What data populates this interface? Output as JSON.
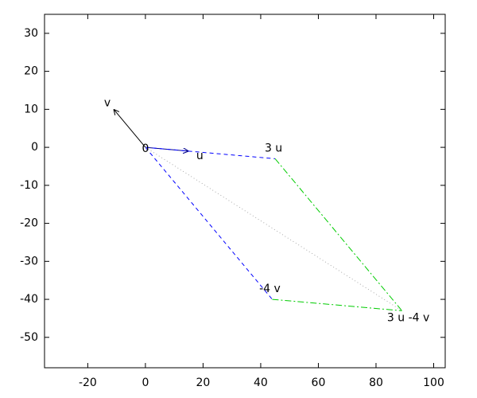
{
  "chart_data": {
    "type": "vector",
    "xlim": [
      -35,
      104
    ],
    "ylim": [
      -58,
      35
    ],
    "xticks": [
      -20,
      0,
      20,
      40,
      60,
      80,
      100
    ],
    "yticks": [
      -50,
      -40,
      -30,
      -20,
      -10,
      0,
      10,
      20,
      30
    ],
    "series": [
      {
        "x": [
          0,
          -11
        ],
        "y": [
          0,
          10
        ],
        "color": "#000000",
        "style": "solid",
        "arrow": true
      },
      {
        "x": [
          0,
          15
        ],
        "y": [
          0,
          -1
        ],
        "color": "#00008b",
        "style": "solid",
        "arrow": true
      },
      {
        "x": [
          0,
          45
        ],
        "y": [
          0,
          -3
        ],
        "color": "#0000ff",
        "style": "dashed",
        "arrow": false
      },
      {
        "x": [
          0,
          44
        ],
        "y": [
          0,
          -40
        ],
        "color": "#0000ff",
        "style": "dashed",
        "arrow": false
      },
      {
        "x": [
          45,
          89
        ],
        "y": [
          -3,
          -43
        ],
        "color": "#00cc00",
        "style": "dashdot",
        "arrow": false
      },
      {
        "x": [
          44,
          89
        ],
        "y": [
          -40,
          -43
        ],
        "color": "#00cc00",
        "style": "dashdot",
        "arrow": false
      },
      {
        "x": [
          0,
          89
        ],
        "y": [
          0,
          -43
        ],
        "color": "#aaaaaa",
        "style": "dotted",
        "arrow": false
      }
    ],
    "annotations": [
      {
        "text": "0",
        "x": 0,
        "y": 0
      },
      {
        "text": "u",
        "x": 15,
        "y": -1
      },
      {
        "text": "v",
        "x": -11,
        "y": 10
      },
      {
        "text": "3 u",
        "x": 45,
        "y": -3
      },
      {
        "text": "-4 v",
        "x": 44,
        "y": -40
      },
      {
        "text": "3 u -4 v",
        "x": 89,
        "y": -43
      }
    ]
  }
}
